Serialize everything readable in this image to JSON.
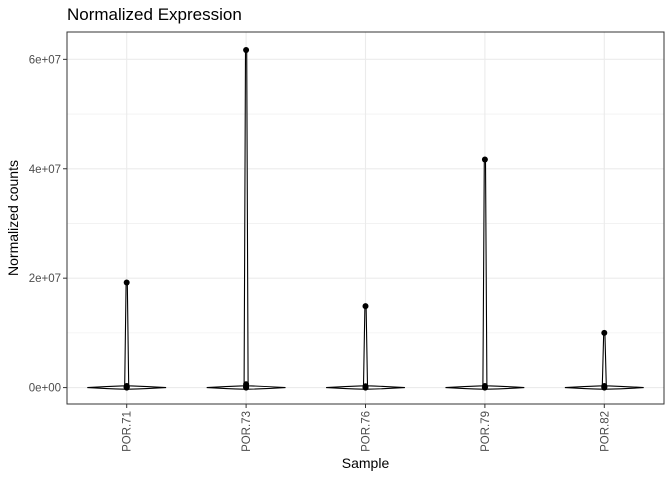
{
  "chart_data": {
    "type": "violin",
    "title": "Normalized Expression",
    "xlabel": "Sample",
    "ylabel": "Normalized counts",
    "categories": [
      "POR.71",
      "POR.73",
      "POR.76",
      "POR.79",
      "POR.82"
    ],
    "y_ticks": [
      0,
      20000000,
      40000000,
      60000000
    ],
    "y_tick_labels": [
      "0e+00",
      "2e+07",
      "4e+07",
      "6e+07"
    ],
    "ylim": [
      -3000000,
      65000000
    ],
    "grid": true,
    "series": [
      {
        "category": "POR.71",
        "max": 19200000,
        "points": [
          19200000,
          300000,
          150000,
          50000,
          0
        ]
      },
      {
        "category": "POR.73",
        "max": 61700000,
        "points": [
          61700000,
          600000,
          300000,
          100000,
          0
        ]
      },
      {
        "category": "POR.76",
        "max": 14900000,
        "points": [
          14900000,
          250000,
          100000,
          0
        ]
      },
      {
        "category": "POR.79",
        "max": 41700000,
        "points": [
          41700000,
          300000,
          100000,
          0
        ]
      },
      {
        "category": "POR.82",
        "max": 10000000,
        "points": [
          10000000,
          300000,
          150000,
          0
        ]
      }
    ],
    "colors": {
      "grid": "#ebebeb",
      "panel_border": "#333333",
      "marks": "#000000",
      "tick_text": "#4d4d4d"
    }
  }
}
